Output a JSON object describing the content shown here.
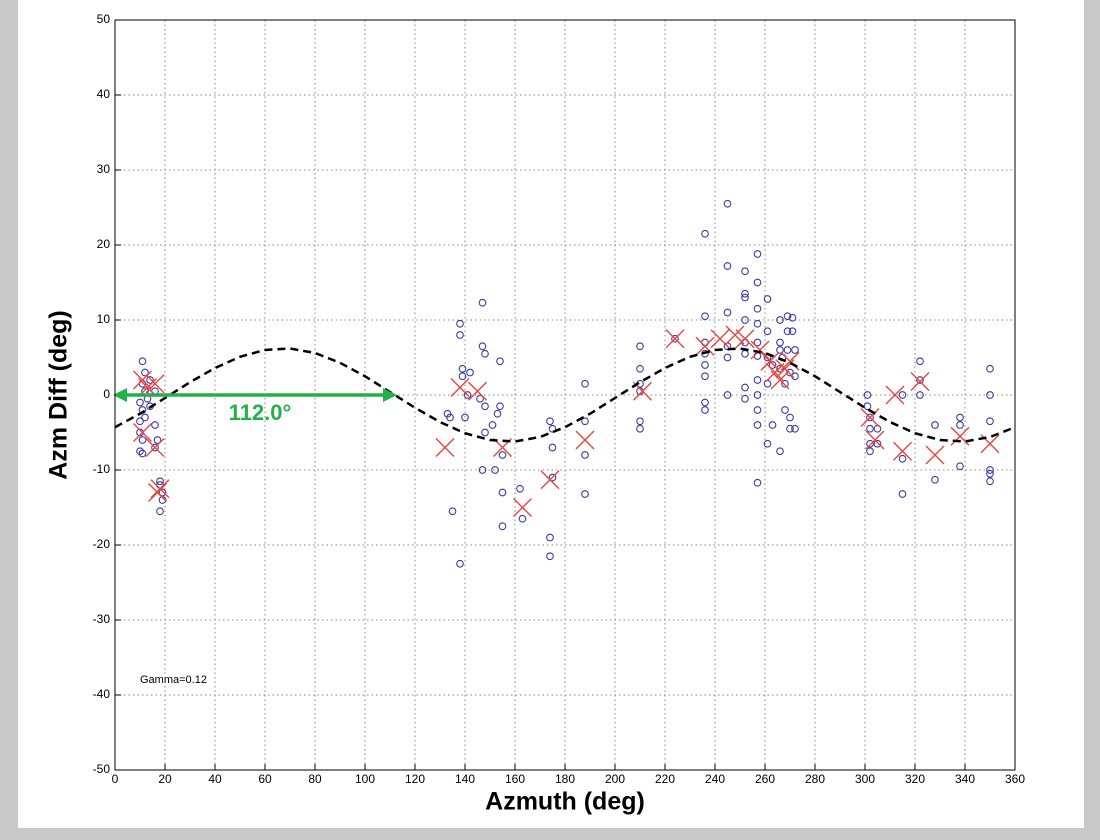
{
  "chart_data": {
    "type": "scatter",
    "x_label": "Azmuth (deg)",
    "y_label": "Azm Diff (deg)",
    "xlim": [
      0,
      360
    ],
    "ylim": [
      -50,
      50
    ],
    "xticks": [
      0,
      20,
      40,
      60,
      80,
      100,
      120,
      140,
      160,
      180,
      200,
      220,
      240,
      260,
      280,
      300,
      320,
      340,
      360
    ],
    "yticks": [
      -50,
      -40,
      -30,
      -20,
      -10,
      0,
      10,
      20,
      30,
      40,
      50
    ],
    "grid": true,
    "series": [
      {
        "marker": "o",
        "color": "#3a3aa8",
        "x": [
          11,
          12,
          11,
          12,
          10,
          11,
          10,
          10,
          11,
          10,
          11,
          13,
          14,
          16,
          16,
          17,
          16,
          18,
          18,
          19,
          19,
          18,
          12,
          14,
          133,
          134,
          135,
          138,
          138,
          139,
          139,
          138,
          140,
          142,
          141,
          146,
          147,
          147,
          148,
          148,
          148,
          147,
          151,
          152,
          153,
          154,
          154,
          155,
          155,
          155,
          162,
          163,
          174,
          175,
          175,
          175,
          174,
          174,
          188,
          188,
          188,
          188,
          210,
          210,
          210,
          210,
          210,
          210,
          224,
          236,
          236,
          236,
          236,
          236,
          236,
          236,
          236,
          245,
          245,
          245,
          245,
          245,
          245,
          252,
          252,
          252,
          252,
          252,
          252,
          252,
          252,
          257,
          257,
          257,
          257,
          257,
          257,
          257,
          257,
          257,
          257,
          257,
          261,
          261,
          261,
          261,
          261,
          263,
          263,
          266,
          266,
          266,
          266,
          266,
          267,
          268,
          268,
          269,
          269,
          269,
          270,
          270,
          270,
          271,
          271,
          272,
          272,
          272,
          301,
          301,
          302,
          302,
          302,
          302,
          305,
          305,
          315,
          315,
          315,
          322,
          322,
          322,
          328,
          328,
          338,
          338,
          338,
          350,
          350,
          350,
          350,
          350,
          350
        ],
        "values": [
          4.5,
          3,
          1.5,
          0.5,
          -1,
          -2,
          -3.5,
          -5,
          -6,
          -7.5,
          -7.8,
          -0.5,
          2,
          0.5,
          -4,
          -6,
          -7,
          -11.5,
          -12,
          -13,
          -14,
          -15.5,
          -3,
          -1.5,
          -2.5,
          -3,
          -15.5,
          9.5,
          8,
          3.5,
          2.5,
          -22.5,
          -3,
          3,
          0,
          -0.5,
          12.3,
          6.5,
          5.5,
          -1.5,
          -5,
          -10,
          -4,
          -10,
          -2.5,
          4.5,
          -1.5,
          -8,
          -13,
          -17.5,
          -12.5,
          -16.5,
          -3.5,
          -4.5,
          -7,
          -11,
          -19,
          -21.5,
          1.5,
          -3.5,
          -8,
          -13.2,
          6.5,
          3.5,
          1.5,
          -3.5,
          -4.5,
          0.5,
          7.5,
          21.5,
          10.5,
          7,
          5.5,
          4,
          2.5,
          -1,
          -2,
          25.5,
          17.2,
          11,
          6.5,
          5,
          0,
          16.5,
          13.5,
          13,
          10,
          7,
          5.5,
          1,
          -0.5,
          18.8,
          15,
          11.5,
          9.5,
          7,
          5.2,
          2,
          0,
          -2,
          -4,
          -11.7,
          12.8,
          8.5,
          5,
          1.5,
          -6.5,
          4,
          -4,
          10,
          7,
          6,
          3.5,
          -7.5,
          5,
          1.5,
          -2,
          10.5,
          8.5,
          6,
          3,
          -3,
          -4.5,
          10.3,
          8.5,
          6,
          2.5,
          -4.5,
          0,
          -1.5,
          -3,
          -4.5,
          -6.5,
          -7.5,
          -4.5,
          -6.5,
          0,
          -8.5,
          -13.2,
          4.5,
          2,
          0,
          -4,
          -11.3,
          -3,
          -4,
          -9.5,
          3.5,
          0,
          -3.5,
          -10,
          -10.5,
          -11.5
        ]
      },
      {
        "marker": "x",
        "color": "#e8453c",
        "x": [
          11,
          13,
          16,
          11,
          16,
          18,
          17,
          132,
          138,
          145,
          155,
          163,
          174,
          188,
          211,
          224,
          236,
          242,
          248,
          252,
          258,
          262,
          264,
          266,
          268,
          270,
          302,
          304,
          312,
          315,
          322,
          328,
          338,
          350
        ],
        "values": [
          2,
          1,
          1.5,
          -5,
          -7,
          -12.5,
          -13,
          -7,
          1,
          0.5,
          -7,
          -15,
          -11.3,
          -6,
          0.5,
          7.5,
          6.5,
          7.5,
          8,
          7.5,
          6,
          4.5,
          3,
          2,
          3.5,
          4.5,
          -3,
          -6,
          0,
          -7.5,
          1.8,
          -8,
          -5.5,
          -6.5
        ]
      },
      {
        "marker": "none",
        "line_style": "dashed",
        "color": "#000000",
        "x": [
          0,
          10,
          20,
          30,
          40,
          50,
          60,
          70,
          80,
          90,
          100,
          110,
          120,
          130,
          140,
          150,
          160,
          170,
          180,
          190,
          200,
          210,
          220,
          230,
          240,
          250,
          260,
          270,
          280,
          290,
          300,
          310,
          320,
          330,
          340,
          350,
          360
        ],
        "values": [
          -4.3,
          -2.5,
          -0.4,
          1.7,
          3.6,
          5.1,
          6.0,
          6.2,
          5.6,
          4.3,
          2.5,
          0.4,
          -1.7,
          -3.6,
          -5.1,
          -6.0,
          -6.2,
          -5.6,
          -4.3,
          -2.5,
          -0.4,
          1.7,
          3.6,
          5.1,
          6.0,
          6.2,
          5.6,
          4.3,
          2.5,
          0.4,
          -1.7,
          -3.6,
          -5.1,
          -6.0,
          -6.2,
          -5.6,
          -4.3
        ]
      }
    ],
    "annotations": [
      {
        "text": "Gamma=0.12"
      },
      {
        "label": "112.0°",
        "x": [
          0,
          112.0
        ],
        "y": 0,
        "color": "#22b04a"
      }
    ]
  }
}
